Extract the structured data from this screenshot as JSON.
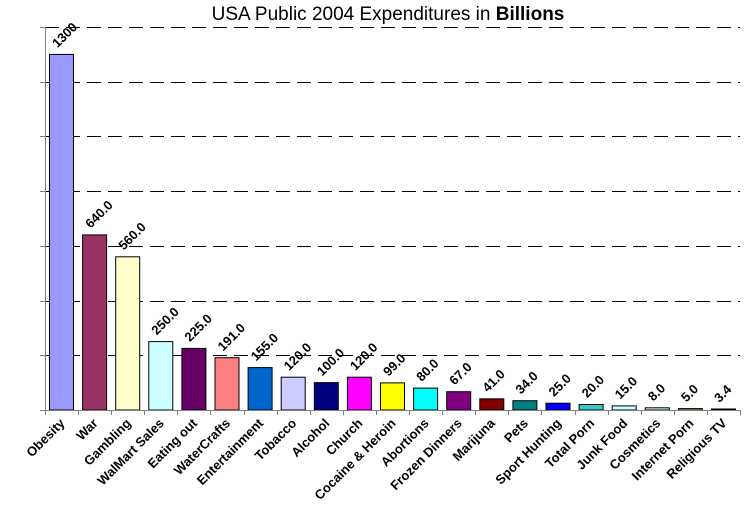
{
  "chart_data": {
    "type": "bar",
    "title": "USA Public 2004 Expenditures in ",
    "title_bold": "Billions",
    "xlabel": "",
    "ylabel": "",
    "ylim": [
      0,
      1400
    ],
    "gridlines": [
      200,
      400,
      600,
      800,
      1000,
      1200,
      1400
    ],
    "grid": true,
    "categories": [
      "Obesity",
      "War",
      "Gambling",
      "WalMart Sales",
      "Eating out",
      "WaterCrafts",
      "Entertainment",
      "Tobacco",
      "Alcohol",
      "Church",
      "Cocaine & Heroin",
      "Abortions",
      "Frozen Dinners",
      "Marijuna",
      "Pets",
      "Sport Hunting",
      "Total Porn",
      "Junk Food",
      "Cosmetics",
      "Internet Porn",
      "Religious TV"
    ],
    "values": [
      1300,
      640.0,
      560.0,
      250.0,
      225.0,
      191.0,
      155.0,
      120.0,
      100.0,
      120.0,
      99.0,
      80.0,
      67.0,
      41.0,
      34.0,
      25.0,
      20.0,
      15.0,
      8.0,
      5.0,
      3.4
    ],
    "value_labels": [
      "1300",
      "640.0",
      "560.0",
      "250.0",
      "225.0",
      "191.0",
      "155.0",
      "120.0",
      "100.0",
      "120.0",
      "99.0",
      "80.0",
      "67.0",
      "41.0",
      "34.0",
      "25.0",
      "20.0",
      "15.0",
      "8.0",
      "5.0",
      "3.4"
    ],
    "colors": [
      "#9999ff",
      "#993366",
      "#ffffcc",
      "#ccffff",
      "#660066",
      "#ff8080",
      "#0066cc",
      "#ccccff",
      "#000080",
      "#ff00ff",
      "#ffff00",
      "#00ffff",
      "#800080",
      "#800000",
      "#008080",
      "#0000ff",
      "#33cccc",
      "#ccffff",
      "#ccffcc",
      "#ffff99",
      "#99ccff"
    ]
  }
}
